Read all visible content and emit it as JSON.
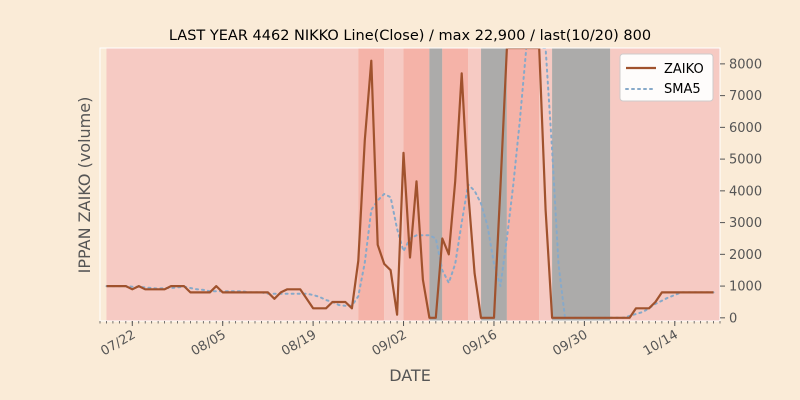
{
  "chart_data": {
    "type": "line",
    "title": "LAST YEAR 4462 NIKKO Line(Close) / max 22,900 / last(10/20) 800",
    "xlabel": "DATE",
    "ylabel": "IPPAN ZAIKO (volume)",
    "x_tick_labels": [
      "07/22",
      "08/05",
      "08/19",
      "09/02",
      "09/16",
      "09/30",
      "10/14"
    ],
    "x_tick_dates": [
      "07-22",
      "08-05",
      "08-19",
      "09-02",
      "09-16",
      "09-30",
      "10-14"
    ],
    "x_range": [
      "07-17",
      "10-21"
    ],
    "y_ticks": [
      0,
      1000,
      2000,
      3000,
      4000,
      5000,
      6000,
      7000,
      8000
    ],
    "ylim": [
      -100,
      8500
    ],
    "y_axis_side": "right",
    "legend_position": "top-right",
    "grid": false,
    "colors": {
      "background": "#faebd7",
      "zaiko": "#a0522d",
      "sma5": "#87a9c9",
      "band_light": "#f4c4c0",
      "band_medium": "#f3a9a0",
      "band_gray": "#a8a8a8"
    },
    "series": [
      {
        "name": "ZAIKO",
        "style": "solid",
        "x": [
          "07-18",
          "07-19",
          "07-20",
          "07-21",
          "07-22",
          "07-23",
          "07-24",
          "07-25",
          "07-26",
          "07-27",
          "07-28",
          "07-29",
          "07-30",
          "07-31",
          "08-01",
          "08-02",
          "08-03",
          "08-04",
          "08-05",
          "08-06",
          "08-07",
          "08-08",
          "08-09",
          "08-10",
          "08-11",
          "08-12",
          "08-13",
          "08-14",
          "08-15",
          "08-16",
          "08-17",
          "08-18",
          "08-19",
          "08-20",
          "08-21",
          "08-22",
          "08-23",
          "08-24",
          "08-25",
          "08-26",
          "08-27",
          "08-28",
          "08-29",
          "08-30",
          "08-31",
          "09-01",
          "09-02",
          "09-03",
          "09-04",
          "09-05",
          "09-06",
          "09-07",
          "09-08",
          "09-09",
          "09-10",
          "09-11",
          "09-12",
          "09-13",
          "09-14",
          "09-15",
          "09-16",
          "09-17",
          "09-18",
          "09-19",
          "09-20",
          "09-21",
          "09-22",
          "09-23",
          "09-24",
          "09-25",
          "09-26",
          "09-27",
          "09-28",
          "09-29",
          "09-30",
          "10-01",
          "10-02",
          "10-03",
          "10-04",
          "10-05",
          "10-06",
          "10-07",
          "10-08",
          "10-09",
          "10-10",
          "10-11",
          "10-12",
          "10-13",
          "10-14",
          "10-15",
          "10-16",
          "10-17",
          "10-18",
          "10-19",
          "10-20"
        ],
        "values": [
          1000,
          1000,
          1000,
          1000,
          900,
          1000,
          900,
          900,
          900,
          900,
          1000,
          1000,
          1000,
          800,
          800,
          800,
          800,
          1000,
          800,
          800,
          800,
          800,
          800,
          800,
          800,
          800,
          600,
          800,
          900,
          900,
          900,
          600,
          300,
          300,
          300,
          500,
          500,
          500,
          300,
          1800,
          5600,
          8100,
          2300,
          1700,
          1500,
          100,
          5200,
          1900,
          4300,
          1200,
          0,
          0,
          2500,
          2000,
          4300,
          7700,
          4000,
          1400,
          0,
          0,
          0,
          4100,
          8500,
          8500,
          8500,
          8500,
          8500,
          8500,
          3400,
          0,
          0,
          0,
          0,
          0,
          0,
          0,
          0,
          0,
          0,
          0,
          0,
          0,
          300,
          300,
          300,
          500,
          800,
          800,
          800,
          800,
          800,
          800,
          800,
          800,
          800
        ]
      },
      {
        "name": "SMA5",
        "style": "dotted",
        "x": [
          "07-18",
          "07-19",
          "07-20",
          "07-21",
          "07-22",
          "07-23",
          "07-24",
          "07-25",
          "07-26",
          "07-27",
          "07-28",
          "07-29",
          "07-30",
          "07-31",
          "08-01",
          "08-02",
          "08-03",
          "08-04",
          "08-05",
          "08-06",
          "08-07",
          "08-08",
          "08-09",
          "08-10",
          "08-11",
          "08-12",
          "08-13",
          "08-14",
          "08-15",
          "08-16",
          "08-17",
          "08-18",
          "08-19",
          "08-20",
          "08-21",
          "08-22",
          "08-23",
          "08-24",
          "08-25",
          "08-26",
          "08-27",
          "08-28",
          "08-29",
          "08-30",
          "08-31",
          "09-01",
          "09-02",
          "09-03",
          "09-04",
          "09-05",
          "09-06",
          "09-07",
          "09-08",
          "09-09",
          "09-10",
          "09-11",
          "09-12",
          "09-13",
          "09-14",
          "09-15",
          "09-16",
          "09-17",
          "09-18",
          "09-19",
          "09-20",
          "09-21",
          "09-22",
          "09-23",
          "09-24",
          "09-25",
          "09-26",
          "09-27",
          "09-28",
          "09-29",
          "09-30",
          "10-01",
          "10-02",
          "10-03",
          "10-04",
          "10-05",
          "10-06",
          "10-07",
          "10-08",
          "10-09",
          "10-10",
          "10-11",
          "10-12",
          "10-13",
          "10-14",
          "10-15",
          "10-16",
          "10-17",
          "10-18",
          "10-19",
          "10-20"
        ],
        "values": [
          1000,
          1000,
          1000,
          1000,
          980,
          980,
          960,
          940,
          920,
          940,
          940,
          960,
          980,
          940,
          900,
          880,
          840,
          840,
          840,
          840,
          840,
          840,
          800,
          800,
          800,
          760,
          760,
          760,
          760,
          760,
          760,
          760,
          720,
          660,
          560,
          500,
          400,
          380,
          380,
          680,
          1740,
          3400,
          3700,
          3900,
          3800,
          2800,
          2100,
          2500,
          2600,
          2600,
          2600,
          2500,
          1500,
          1100,
          1700,
          3000,
          4200,
          4000,
          3600,
          2900,
          1700,
          1000,
          2500,
          4200,
          6200,
          8500,
          8500,
          8500,
          8500,
          5300,
          1700,
          0,
          0,
          0,
          0,
          0,
          0,
          0,
          0,
          0,
          0,
          60,
          120,
          180,
          300,
          440,
          540,
          640,
          720,
          800,
          800,
          800,
          800,
          800,
          800
        ]
      }
    ],
    "background_bands": [
      {
        "start": "07-18",
        "end": "08-26",
        "shade": "light"
      },
      {
        "start": "08-26",
        "end": "08-30",
        "shade": "medium"
      },
      {
        "start": "08-30",
        "end": "09-02",
        "shade": "light"
      },
      {
        "start": "09-02",
        "end": "09-06",
        "shade": "medium"
      },
      {
        "start": "09-06",
        "end": "09-08",
        "shade": "gray"
      },
      {
        "start": "09-08",
        "end": "09-12",
        "shade": "medium"
      },
      {
        "start": "09-12",
        "end": "09-14",
        "shade": "light"
      },
      {
        "start": "09-14",
        "end": "09-18",
        "shade": "gray"
      },
      {
        "start": "09-18",
        "end": "09-23",
        "shade": "medium"
      },
      {
        "start": "09-23",
        "end": "09-25",
        "shade": "light"
      },
      {
        "start": "09-25",
        "end": "10-04",
        "shade": "gray"
      },
      {
        "start": "10-04",
        "end": "10-21",
        "shade": "light"
      }
    ]
  }
}
